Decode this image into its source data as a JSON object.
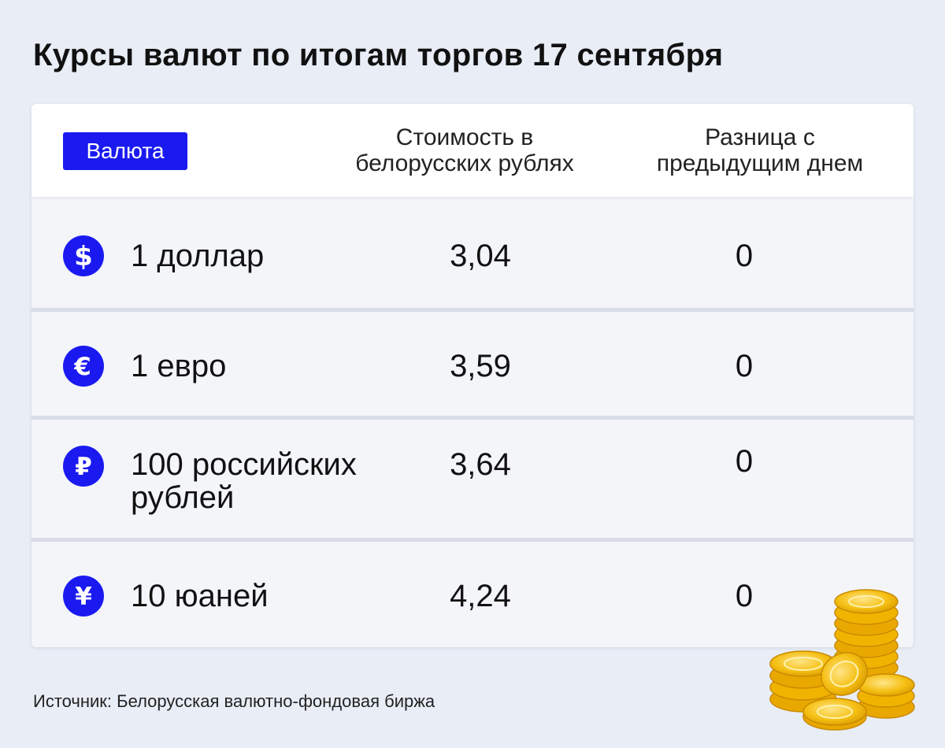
{
  "title": "Курсы валют по итогам торгов 17 сентября",
  "table": {
    "header": {
      "currency_label": "Валюта",
      "value_label_line1": "Стоимость в",
      "value_label_line2": "белорусских рублях",
      "diff_label_line1": "Разница с",
      "diff_label_line2": "предыдущим днем"
    },
    "rows": [
      {
        "icon": "dollar-icon",
        "name_line1": "1 доллар",
        "name_line2": "",
        "value": "3,04",
        "diff": "0"
      },
      {
        "icon": "euro-icon",
        "name_line1": "1 евро",
        "name_line2": "",
        "value": "3,59",
        "diff": "0"
      },
      {
        "icon": "ruble-icon",
        "name_line1": "100 российских",
        "name_line2": "рублей",
        "value": "3,64",
        "diff": "0"
      },
      {
        "icon": "yuan-icon",
        "name_line1": "10 юаней",
        "name_line2": "",
        "value": "4,24",
        "diff": "0"
      }
    ]
  },
  "source": "Источник: Белорусская валютно-фондовая биржа",
  "colors": {
    "accent": "#1a1af0",
    "background": "#e8edf6",
    "coin": "#f2b705"
  }
}
